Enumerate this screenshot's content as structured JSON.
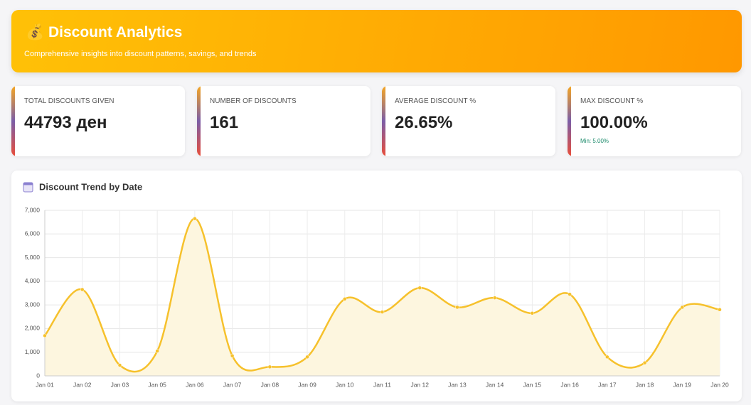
{
  "header": {
    "title": "💰 Discount Analytics",
    "subtitle": "Comprehensive insights into discount patterns, savings, and trends"
  },
  "stats": [
    {
      "label": "TOTAL DISCOUNTS GIVEN",
      "value": "44793 ден"
    },
    {
      "label": "NUMBER OF DISCOUNTS",
      "value": "161"
    },
    {
      "label": "AVERAGE DISCOUNT %",
      "value": "26.65%"
    },
    {
      "label": "MAX DISCOUNT %",
      "value": "100.00%",
      "note": "Min: 5.00%"
    }
  ],
  "chart_data": {
    "type": "line",
    "title": "Discount Trend by Date",
    "categories": [
      "Jan 01",
      "Jan 02",
      "Jan 03",
      "Jan 05",
      "Jan 06",
      "Jan 07",
      "Jan 08",
      "Jan 09",
      "Jan 10",
      "Jan 11",
      "Jan 12",
      "Jan 13",
      "Jan 14",
      "Jan 15",
      "Jan 16",
      "Jan 17",
      "Jan 18",
      "Jan 19",
      "Jan 20"
    ],
    "values": [
      1700,
      3650,
      450,
      1050,
      6650,
      850,
      380,
      800,
      3250,
      2700,
      3720,
      2900,
      3300,
      2650,
      3450,
      800,
      550,
      2900,
      2800
    ],
    "color": "#f6c12c",
    "fill": "#fdf6df",
    "ylim": [
      0,
      7000
    ],
    "yticks": [
      0,
      {
        "value": 1000,
        "label": "1,000"
      },
      {
        "value": 2000,
        "label": "2,000"
      },
      {
        "value": 3000,
        "label": "3,000"
      },
      {
        "value": 4000,
        "label": "4,000"
      },
      {
        "value": 5000,
        "label": "5,000"
      },
      {
        "value": 6000,
        "label": "6,000"
      },
      {
        "value": 7000,
        "label": "7,000"
      }
    ],
    "grid": true
  }
}
